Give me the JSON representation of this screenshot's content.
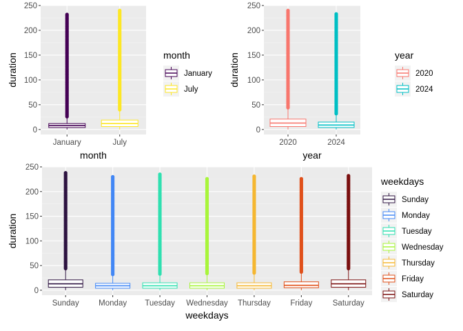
{
  "chart_data": [
    {
      "type": "boxplot",
      "xlabel": "month",
      "ylabel": "duration",
      "ylim": [
        -10,
        250
      ],
      "yticks": [
        0,
        50,
        100,
        150,
        200,
        250
      ],
      "categories": [
        "January",
        "July"
      ],
      "colors": [
        "#440154",
        "#FDE725"
      ],
      "legend": {
        "title": "month",
        "position": "right",
        "entries": [
          "January",
          "July"
        ]
      },
      "boxes": [
        {
          "name": "January",
          "min": 0,
          "q1": 4,
          "median": 8,
          "q3": 12,
          "whisker_hi": 24,
          "outlier_max": 232
        },
        {
          "name": "July",
          "min": 0,
          "q1": 6,
          "median": 12,
          "q3": 19,
          "whisker_hi": 38,
          "outlier_max": 240
        }
      ]
    },
    {
      "type": "boxplot",
      "xlabel": "year",
      "ylabel": "duration",
      "ylim": [
        -10,
        250
      ],
      "yticks": [
        0,
        50,
        100,
        150,
        200,
        250
      ],
      "categories": [
        "2020",
        "2024"
      ],
      "colors": [
        "#F8766D",
        "#00BFC4"
      ],
      "legend": {
        "title": "year",
        "position": "right",
        "entries": [
          "2020",
          "2024"
        ]
      },
      "boxes": [
        {
          "name": "2020",
          "min": 0,
          "q1": 6,
          "median": 13,
          "q3": 21,
          "whisker_hi": 42,
          "outlier_max": 240
        },
        {
          "name": "2024",
          "min": 0,
          "q1": 4,
          "median": 9,
          "q3": 15,
          "whisker_hi": 30,
          "outlier_max": 233
        }
      ]
    },
    {
      "type": "boxplot",
      "xlabel": "weekdays",
      "ylabel": "duration",
      "ylim": [
        -10,
        250
      ],
      "yticks": [
        0,
        50,
        100,
        150,
        200,
        250
      ],
      "categories": [
        "Sunday",
        "Monday",
        "Tuesday",
        "Wednesday",
        "Thursday",
        "Friday",
        "Saturday"
      ],
      "colors": [
        "#2D1340",
        "#4287F5",
        "#2FE0B0",
        "#A8F53A",
        "#F5B731",
        "#E0501A",
        "#7A0F0F"
      ],
      "legend": {
        "title": "weekdays",
        "position": "right",
        "entries": [
          "Sunday",
          "Monday",
          "Tuesday",
          "Wednesday",
          "Thursday",
          "Friday",
          "Saturday"
        ]
      },
      "boxes": [
        {
          "name": "Sunday",
          "min": 0,
          "q1": 6,
          "median": 13,
          "q3": 21,
          "whisker_hi": 42,
          "outlier_max": 238
        },
        {
          "name": "Monday",
          "min": 0,
          "q1": 4,
          "median": 9,
          "q3": 14,
          "whisker_hi": 30,
          "outlier_max": 230
        },
        {
          "name": "Tuesday",
          "min": 0,
          "q1": 4,
          "median": 9,
          "q3": 15,
          "whisker_hi": 31,
          "outlier_max": 235
        },
        {
          "name": "Wednesday",
          "min": 0,
          "q1": 4,
          "median": 9,
          "q3": 15,
          "whisker_hi": 32,
          "outlier_max": 226
        },
        {
          "name": "Thursday",
          "min": 0,
          "q1": 4,
          "median": 9,
          "q3": 15,
          "whisker_hi": 33,
          "outlier_max": 231
        },
        {
          "name": "Friday",
          "min": 0,
          "q1": 5,
          "median": 10,
          "q3": 17,
          "whisker_hi": 35,
          "outlier_max": 226
        },
        {
          "name": "Saturday",
          "min": 0,
          "q1": 6,
          "median": 13,
          "q3": 21,
          "whisker_hi": 42,
          "outlier_max": 232
        }
      ]
    }
  ]
}
